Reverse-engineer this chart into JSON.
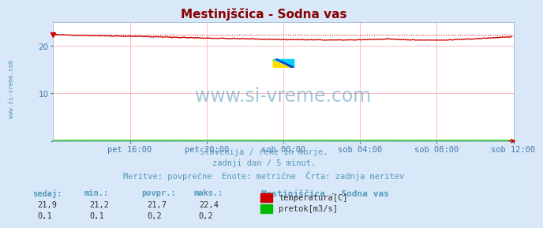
{
  "title": "Mestinjščica - Sodna vas",
  "bg_color": "#d8e8f8",
  "plot_bg_color": "#ffffff",
  "grid_color": "#ffbbbb",
  "tick_color": "#4477aa",
  "title_color": "#880000",
  "watermark": "www.si-vreme.com",
  "watermark_color": "#5599bb",
  "subtitle_lines": [
    "Slovenija / reke in morje.",
    "zadnji dan / 5 minut.",
    "Meritve: povprečne  Enote: metrične  Črta: zadnja meritev"
  ],
  "subtitle_color": "#5599bb",
  "xticklabels": [
    "pet 16:00",
    "pet 20:00",
    "sob 00:00",
    "sob 04:00",
    "sob 08:00",
    "sob 12:00"
  ],
  "xtick_positions": [
    48,
    96,
    144,
    192,
    240,
    288
  ],
  "yticks": [
    0,
    10,
    20
  ],
  "ylim": [
    0,
    25
  ],
  "xlim": [
    0,
    288
  ],
  "temp_color": "#cc0000",
  "flow_color": "#00bb00",
  "temp_dotted_color": "#cc0000",
  "temp_avg": 21.7,
  "temp_min": 21.2,
  "temp_max": 22.4,
  "temp_last": 21.9,
  "flow_avg": 0.2,
  "flow_min": 0.1,
  "flow_max": 0.2,
  "flow_last": 0.1,
  "table_headers": [
    "sedaj:",
    "min.:",
    "povpr.:",
    "maks.:"
  ],
  "legend_title": "Mestinjščica - Sodna vas",
  "legend_labels": [
    "temperatura[C]",
    "pretok[m3/s]"
  ],
  "legend_colors": [
    "#cc0000",
    "#00bb00"
  ],
  "sidebar_text": "www.si-vreme.com",
  "sidebar_color": "#5599bb",
  "logo_yellow": "#ffdd00",
  "logo_cyan": "#00ccff",
  "logo_blue": "#0044cc",
  "arrow_color": "#cc0000"
}
